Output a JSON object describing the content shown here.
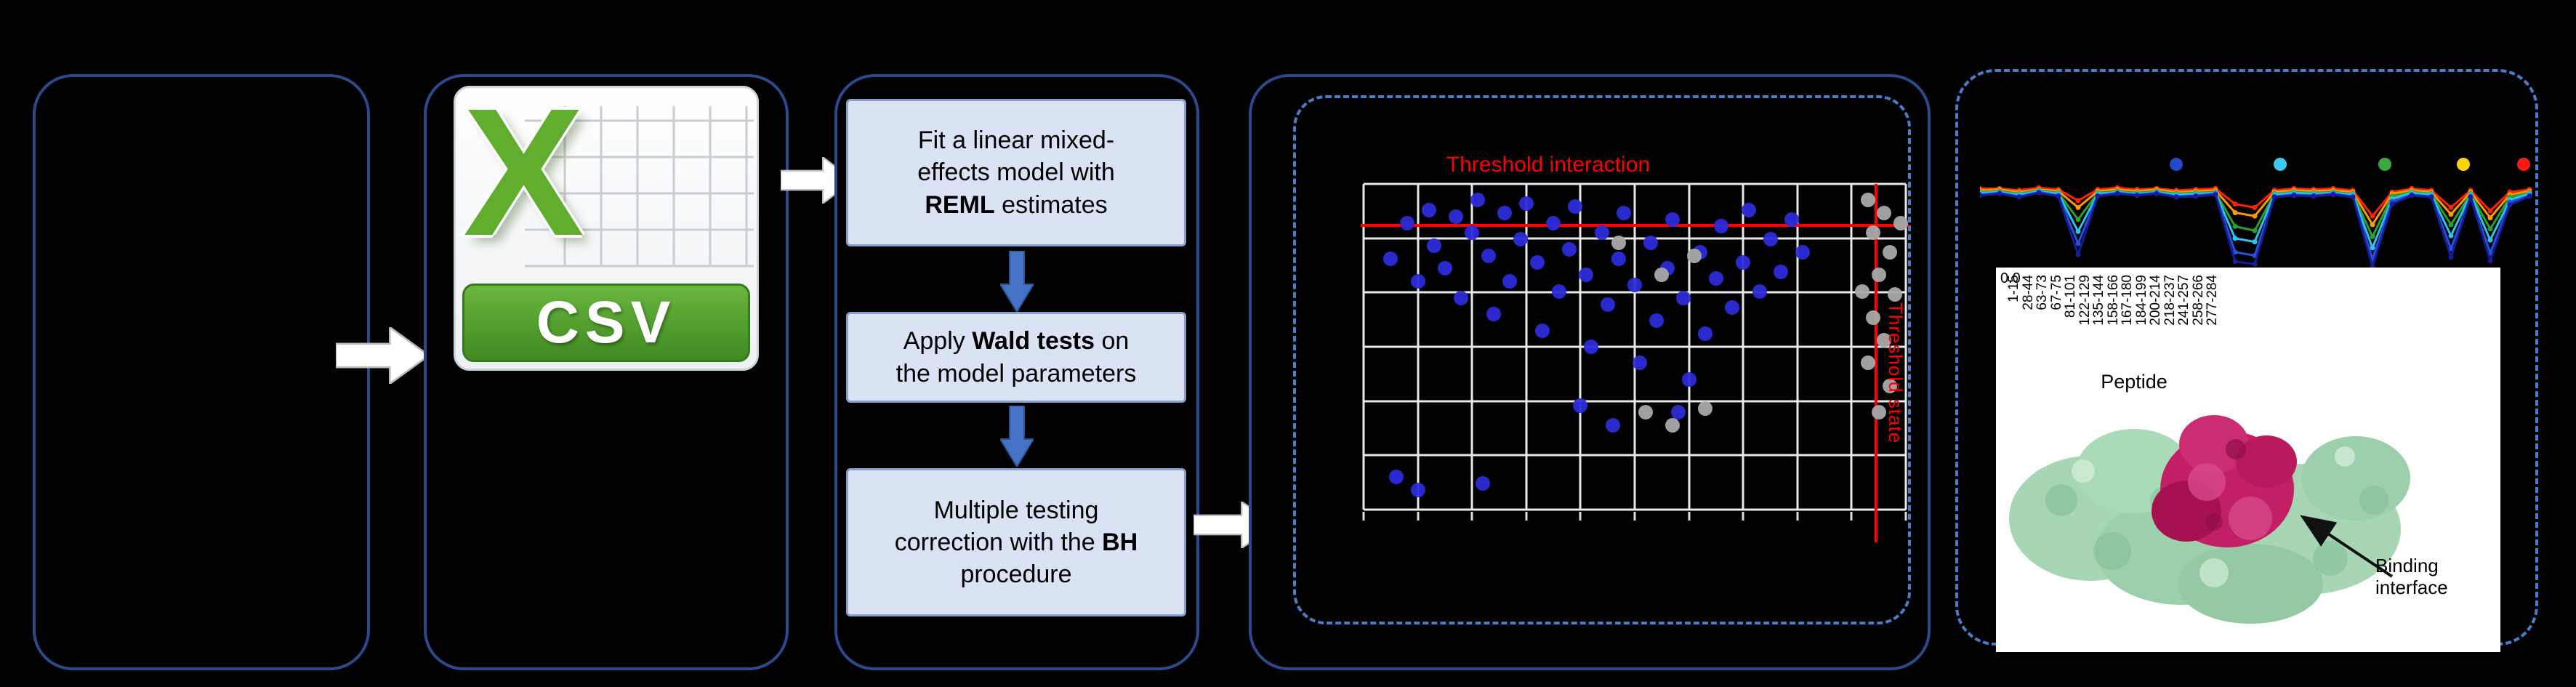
{
  "theme": {
    "background": "#000000",
    "panel_border": "#2b4a8b",
    "dashed_border": "#4a7cc9",
    "box_fill": "#dae3f3",
    "box_border": "#8aa0cc",
    "arrow_blue": "#4472c4"
  },
  "panels": {
    "csv": {
      "x_letter": "X",
      "label": "CSV"
    },
    "steps": [
      {
        "pre": "Fit a linear mixed-effects model with ",
        "bold": "REML",
        "post": " estimates"
      },
      {
        "pre": "Apply ",
        "bold": "Wald tests",
        "post": " on the model parameters"
      },
      {
        "pre": "Multiple testing correction with the ",
        "bold": "BH",
        "post": " procedure"
      }
    ],
    "mapping": {
      "y_tick": "0.0",
      "peptides": [
        "1-15",
        "28-44",
        "63-73",
        "67-75",
        "81-101",
        "122-129",
        "135-144",
        "158-166",
        "167-180",
        "184-199",
        "200-214",
        "218-237",
        "241-257",
        "258-266",
        "277-284"
      ],
      "axis_label": "Peptide",
      "binding_label": "Binding interface"
    }
  },
  "chart_data": [
    {
      "type": "scatter",
      "title": "Threshold interaction",
      "side_label": "Threshold state",
      "grid_cols": 10,
      "grid_rows": 6,
      "threshold_h_frac": 0.127,
      "threshold_v_frac": 0.945,
      "threshold_color": "#ff0000",
      "point_color_significant": "#2b2bd9",
      "point_color_nonsignificant": "#a9a9a9",
      "blue_points": [
        [
          0.05,
          0.23
        ],
        [
          0.08,
          0.12
        ],
        [
          0.1,
          0.3
        ],
        [
          0.12,
          0.08
        ],
        [
          0.13,
          0.19
        ],
        [
          0.15,
          0.26
        ],
        [
          0.17,
          0.1
        ],
        [
          0.18,
          0.35
        ],
        [
          0.2,
          0.15
        ],
        [
          0.21,
          0.05
        ],
        [
          0.23,
          0.22
        ],
        [
          0.24,
          0.4
        ],
        [
          0.26,
          0.09
        ],
        [
          0.27,
          0.3
        ],
        [
          0.29,
          0.17
        ],
        [
          0.3,
          0.06
        ],
        [
          0.32,
          0.24
        ],
        [
          0.33,
          0.45
        ],
        [
          0.35,
          0.12
        ],
        [
          0.36,
          0.33
        ],
        [
          0.38,
          0.2
        ],
        [
          0.39,
          0.07
        ],
        [
          0.41,
          0.28
        ],
        [
          0.42,
          0.5
        ],
        [
          0.44,
          0.15
        ],
        [
          0.45,
          0.37
        ],
        [
          0.47,
          0.23
        ],
        [
          0.48,
          0.09
        ],
        [
          0.5,
          0.31
        ],
        [
          0.51,
          0.55
        ],
        [
          0.53,
          0.18
        ],
        [
          0.54,
          0.42
        ],
        [
          0.56,
          0.26
        ],
        [
          0.57,
          0.11
        ],
        [
          0.59,
          0.35
        ],
        [
          0.6,
          0.6
        ],
        [
          0.62,
          0.21
        ],
        [
          0.63,
          0.46
        ],
        [
          0.65,
          0.29
        ],
        [
          0.66,
          0.13
        ],
        [
          0.68,
          0.38
        ],
        [
          0.7,
          0.24
        ],
        [
          0.71,
          0.08
        ],
        [
          0.73,
          0.33
        ],
        [
          0.75,
          0.17
        ],
        [
          0.77,
          0.27
        ],
        [
          0.79,
          0.11
        ],
        [
          0.81,
          0.21
        ],
        [
          0.06,
          0.9
        ],
        [
          0.1,
          0.94
        ],
        [
          0.22,
          0.92
        ],
        [
          0.4,
          0.68
        ],
        [
          0.46,
          0.74
        ],
        [
          0.58,
          0.7
        ]
      ],
      "gray_points": [
        [
          0.93,
          0.05
        ],
        [
          0.96,
          0.09
        ],
        [
          0.94,
          0.15
        ],
        [
          0.97,
          0.21
        ],
        [
          0.95,
          0.28
        ],
        [
          0.98,
          0.34
        ],
        [
          0.94,
          0.41
        ],
        [
          0.96,
          0.48
        ],
        [
          0.93,
          0.55
        ],
        [
          0.97,
          0.62
        ],
        [
          0.95,
          0.7
        ],
        [
          0.99,
          0.12
        ],
        [
          0.92,
          0.33
        ],
        [
          0.55,
          0.28
        ],
        [
          0.61,
          0.22
        ],
        [
          0.47,
          0.18
        ],
        [
          0.52,
          0.7
        ],
        [
          0.57,
          0.74
        ],
        [
          0.63,
          0.69
        ]
      ]
    },
    {
      "type": "line",
      "legend_dot_colors": [
        "#2149c8",
        "#3ec9f2",
        "#3aa83a",
        "#ffd400",
        "#ff1a1a"
      ],
      "series": [
        {
          "color": "#ff2200",
          "values": [
            0.08,
            0.08,
            0.1,
            0.07,
            0.09,
            0.22,
            0.09,
            0.07,
            0.09,
            0.08,
            0.1,
            0.09,
            0.08,
            0.26,
            0.3,
            0.1,
            0.08,
            0.09,
            0.08,
            0.1,
            0.4,
            0.12,
            0.08,
            0.1,
            0.3,
            0.1,
            0.34,
            0.12,
            0.09
          ]
        },
        {
          "color": "#ff9900",
          "values": [
            0.1,
            0.09,
            0.12,
            0.09,
            0.11,
            0.3,
            0.11,
            0.09,
            0.11,
            0.09,
            0.12,
            0.11,
            0.1,
            0.36,
            0.4,
            0.12,
            0.1,
            0.11,
            0.1,
            0.12,
            0.5,
            0.14,
            0.1,
            0.12,
            0.38,
            0.12,
            0.42,
            0.15,
            0.11
          ]
        },
        {
          "color": "#2ca02c",
          "values": [
            0.12,
            0.11,
            0.14,
            0.1,
            0.13,
            0.44,
            0.13,
            0.11,
            0.13,
            0.11,
            0.14,
            0.13,
            0.12,
            0.52,
            0.57,
            0.14,
            0.12,
            0.13,
            0.12,
            0.14,
            0.64,
            0.17,
            0.12,
            0.14,
            0.5,
            0.14,
            0.55,
            0.18,
            0.13
          ]
        },
        {
          "color": "#29c5f0",
          "values": [
            0.13,
            0.12,
            0.15,
            0.11,
            0.14,
            0.58,
            0.14,
            0.12,
            0.14,
            0.12,
            0.15,
            0.14,
            0.13,
            0.66,
            0.7,
            0.15,
            0.13,
            0.14,
            0.13,
            0.15,
            0.77,
            0.2,
            0.13,
            0.15,
            0.63,
            0.15,
            0.68,
            0.21,
            0.14
          ]
        },
        {
          "color": "#2b50d8",
          "values": [
            0.15,
            0.13,
            0.17,
            0.12,
            0.16,
            0.72,
            0.16,
            0.13,
            0.15,
            0.13,
            0.17,
            0.16,
            0.14,
            0.82,
            0.86,
            0.17,
            0.15,
            0.16,
            0.14,
            0.17,
            0.9,
            0.23,
            0.15,
            0.17,
            0.78,
            0.17,
            0.83,
            0.24,
            0.16
          ]
        },
        {
          "color": "#141e9b",
          "values": [
            0.16,
            0.14,
            0.18,
            0.13,
            0.17,
            0.85,
            0.17,
            0.14,
            0.16,
            0.14,
            0.18,
            0.17,
            0.15,
            0.93,
            0.96,
            0.18,
            0.16,
            0.17,
            0.15,
            0.18,
            0.99,
            0.26,
            0.16,
            0.18,
            0.88,
            0.18,
            0.92,
            0.27,
            0.17
          ]
        }
      ]
    }
  ]
}
